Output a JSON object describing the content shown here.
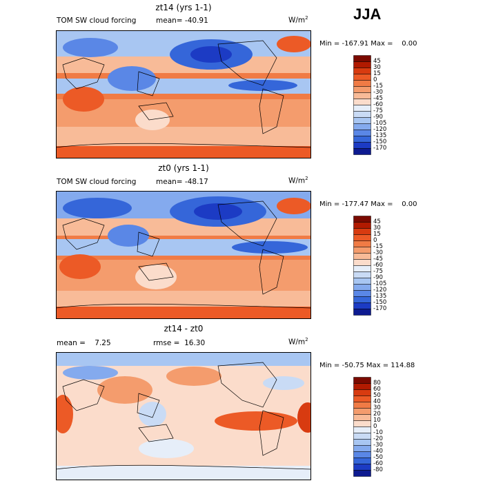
{
  "season": "JJA",
  "units_base": "W/m",
  "units_exp": "2",
  "panels": [
    {
      "title": "zt14 (yrs 1-1)",
      "field": "TOM SW cloud forcing",
      "stat1": "mean= -40.91",
      "stat2": "",
      "minmax": "Min = -167.91 Max =    0.00",
      "levels": [
        "45",
        "30",
        "15",
        "0",
        "-15",
        "-30",
        "-45",
        "-60",
        "-75",
        "-90",
        "-105",
        "-120",
        "-135",
        "-150",
        "-170"
      ],
      "colors": [
        "#7b0a00",
        "#b11a00",
        "#d83b10",
        "#ec5a26",
        "#f07b45",
        "#f49c6d",
        "#f8bb98",
        "#fbdccb",
        "#e6eef9",
        "#c9dbf5",
        "#a8c6f2",
        "#84aaee",
        "#5a87e6",
        "#3566d9",
        "#1c3bc4",
        "#0d1a90"
      ],
      "style": "field"
    },
    {
      "title": "zt0 (yrs 1-1)",
      "field": "TOM SW cloud forcing",
      "stat1": "mean= -48.17",
      "stat2": "",
      "minmax": "Min = -177.47 Max =    0.00",
      "levels": [
        "45",
        "30",
        "15",
        "0",
        "-15",
        "-30",
        "-45",
        "-60",
        "-75",
        "-90",
        "-105",
        "-120",
        "-135",
        "-150",
        "-170"
      ],
      "colors": [
        "#7b0a00",
        "#b11a00",
        "#d83b10",
        "#ec5a26",
        "#f07b45",
        "#f49c6d",
        "#f8bb98",
        "#fbdccb",
        "#e6eef9",
        "#c9dbf5",
        "#a8c6f2",
        "#84aaee",
        "#5a87e6",
        "#3566d9",
        "#1c3bc4",
        "#0d1a90"
      ],
      "style": "field"
    },
    {
      "title": "zt14 - zt0",
      "field": "mean =    7.25",
      "stat1": "rmse =  16.30",
      "stat2": "",
      "minmax": "Min = -50.75 Max = 114.88",
      "levels": [
        "80",
        "60",
        "50",
        "40",
        "30",
        "20",
        "10",
        "0",
        "-10",
        "-20",
        "-30",
        "-40",
        "-50",
        "-60",
        "-80"
      ],
      "colors": [
        "#7b0a00",
        "#b11a00",
        "#d83b10",
        "#ec5a26",
        "#f07b45",
        "#f49c6d",
        "#f8bb98",
        "#fbdccb",
        "#e6eef9",
        "#c9dbf5",
        "#a8c6f2",
        "#84aaee",
        "#5a87e6",
        "#3566d9",
        "#1c3bc4",
        "#0d1a90"
      ],
      "style": "diff"
    }
  ]
}
